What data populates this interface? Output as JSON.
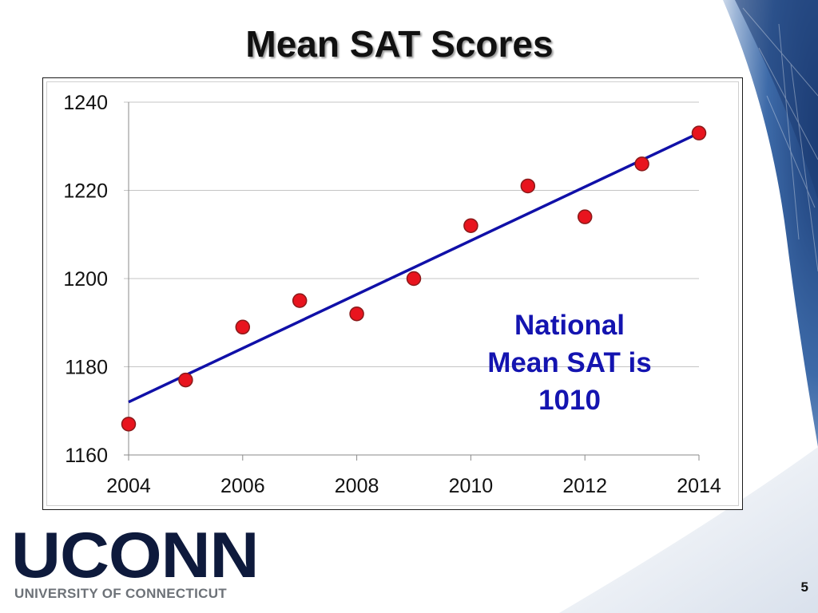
{
  "slide": {
    "title": "Mean SAT Scores",
    "page_number": "5"
  },
  "annotation": {
    "lines": [
      "National",
      "Mean SAT is",
      "1010"
    ],
    "color": "#1414b0"
  },
  "logo": {
    "wordmark": "UCONN",
    "subtitle": "UNIVERSITY OF CONNECTICUT",
    "color": "#0e1a3c"
  },
  "theme": {
    "marker_color": "#e8141e",
    "marker_edge": "#8a1a1a",
    "trendline_color": "#1010a8",
    "background_accent": "#2a4f8c"
  },
  "chart_data": {
    "type": "scatter",
    "title": "",
    "xlabel": "",
    "ylabel": "",
    "xlim": [
      2004,
      2014
    ],
    "ylim": [
      1160,
      1240
    ],
    "x_ticks": [
      2004,
      2006,
      2008,
      2010,
      2012,
      2014
    ],
    "y_ticks": [
      1160,
      1180,
      1200,
      1220,
      1240
    ],
    "grid": "horizontal",
    "legend": "none",
    "points": [
      {
        "x": 2004,
        "y": 1167
      },
      {
        "x": 2005,
        "y": 1177
      },
      {
        "x": 2006,
        "y": 1189
      },
      {
        "x": 2007,
        "y": 1195
      },
      {
        "x": 2008,
        "y": 1192
      },
      {
        "x": 2009,
        "y": 1200
      },
      {
        "x": 2010,
        "y": 1212
      },
      {
        "x": 2011,
        "y": 1221
      },
      {
        "x": 2012,
        "y": 1214
      },
      {
        "x": 2013,
        "y": 1226
      },
      {
        "x": 2014,
        "y": 1233
      }
    ],
    "trendline": {
      "type": "linear",
      "x": [
        2004,
        2014
      ],
      "y": [
        1172,
        1233
      ]
    }
  }
}
